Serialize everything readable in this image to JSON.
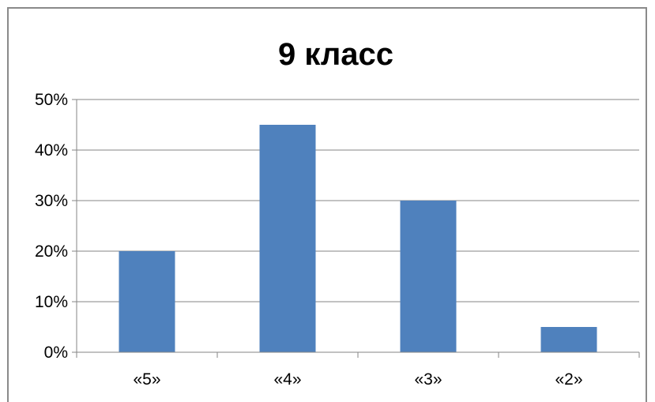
{
  "chart_data": {
    "type": "bar",
    "title": "9 класс",
    "categories": [
      "«5»",
      "«4»",
      "«3»",
      "«2»"
    ],
    "values": [
      20,
      45,
      30,
      5
    ],
    "ylim": [
      0,
      50
    ],
    "yticks": [
      "0%",
      "10%",
      "20%",
      "30%",
      "40%",
      "50%"
    ],
    "grid": true,
    "legend": "none",
    "bar_color": "#4f81bd"
  }
}
